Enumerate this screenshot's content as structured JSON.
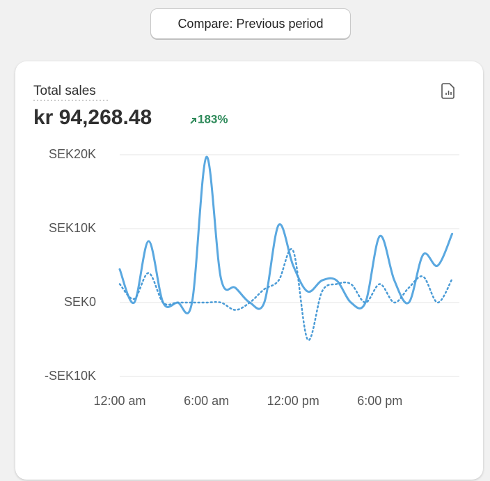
{
  "button": "Compare: Previous period",
  "chart_data": {
    "type": "line",
    "title": "Total sales",
    "subtitle": "kr 94,268.48",
    "change": "183%",
    "x": [
      0,
      1,
      2,
      3,
      4,
      5,
      6,
      7,
      8,
      9,
      10,
      11,
      12,
      13,
      14,
      15,
      16,
      17,
      18,
      19,
      20,
      21,
      22,
      23
    ],
    "xlim": [
      0,
      23.5
    ],
    "xticks": [
      {
        "value": 0,
        "label": "12:00 am"
      },
      {
        "value": 6,
        "label": "6:00 am"
      },
      {
        "value": 12,
        "label": "12:00 pm"
      },
      {
        "value": 18,
        "label": "6:00 pm"
      }
    ],
    "ylim": [
      -10000,
      20000
    ],
    "yticks": [
      {
        "value": -10000,
        "label": "-SEK10K"
      },
      {
        "value": 0,
        "label": "SEK0"
      },
      {
        "value": 10000,
        "label": "SEK10K"
      },
      {
        "value": 20000,
        "label": "SEK20K"
      }
    ],
    "grid": true,
    "series": [
      {
        "color": "#5aa8e0",
        "line_style": "solid",
        "values": [
          4500,
          0,
          8300,
          0,
          0,
          0,
          19700,
          3300,
          2000,
          0,
          0,
          10500,
          5000,
          1500,
          3000,
          3000,
          0,
          0,
          9000,
          3000,
          0,
          6500,
          5000,
          9300
        ]
      },
      {
        "color": "#4a9bd6",
        "line_style": "dotted",
        "values": [
          2500,
          500,
          4000,
          0,
          0,
          0,
          0,
          0,
          -1000,
          0,
          1800,
          3000,
          7000,
          -5000,
          1500,
          2500,
          2500,
          0,
          2500,
          0,
          2000,
          3500,
          0,
          3200
        ]
      }
    ]
  }
}
